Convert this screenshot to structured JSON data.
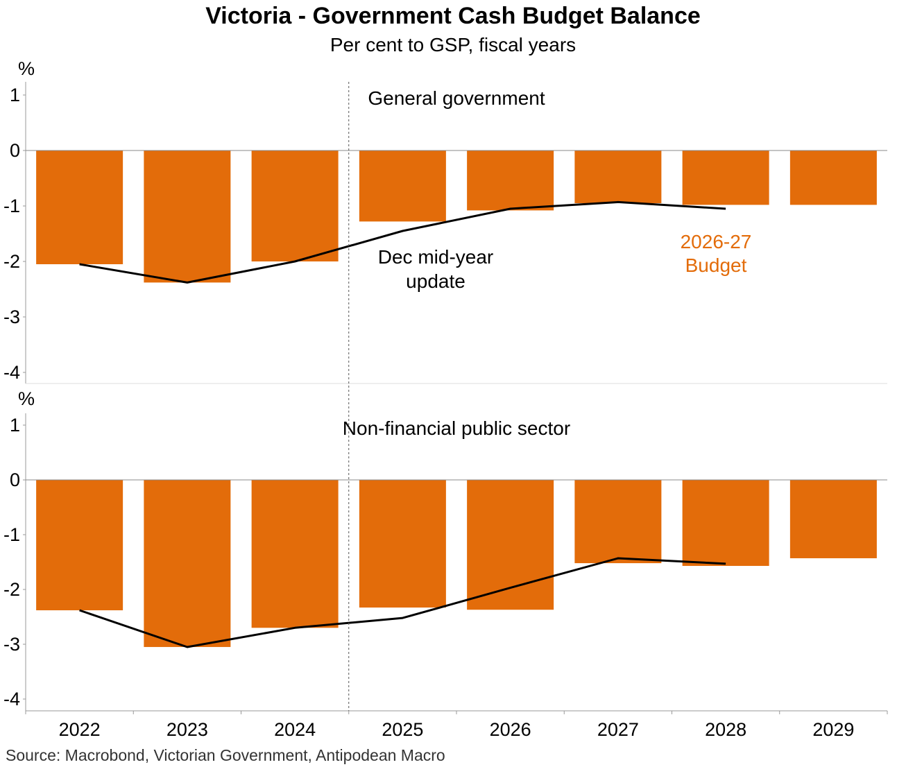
{
  "colors": {
    "bar": "#e36c0a",
    "line": "#000000",
    "annotation_budget": "#e36c0a",
    "axis": "#999999"
  },
  "chart_data": {
    "type": "bar",
    "title": "Victoria - Government Cash Budget Balance",
    "subtitle": "Per cent to GSP, fiscal years",
    "categories": [
      "2022",
      "2023",
      "2024",
      "2025",
      "2026",
      "2027",
      "2028",
      "2029"
    ],
    "ylim": [
      -4.2,
      1.2
    ],
    "yticks": [
      "1",
      "0",
      "-1",
      "-2",
      "-3",
      "-4"
    ],
    "yunit": "%",
    "grid": false,
    "panels": [
      {
        "label": "General government",
        "series": [
          {
            "name": "2026-27 Budget",
            "type": "bar",
            "values": [
              -2.05,
              -2.38,
              -2.0,
              -1.28,
              -1.08,
              -0.95,
              -0.98,
              -0.98
            ]
          },
          {
            "name": "Dec mid-year update",
            "type": "line",
            "values": [
              -2.05,
              -2.38,
              -2.0,
              -1.45,
              -1.05,
              -0.93,
              -1.05,
              null
            ]
          }
        ]
      },
      {
        "label": "Non-financial public sector",
        "series": [
          {
            "name": "2026-27 Budget",
            "type": "bar",
            "values": [
              -2.38,
              -3.05,
              -2.7,
              -2.33,
              -2.37,
              -1.52,
              -1.57,
              -1.43
            ]
          },
          {
            "name": "Dec mid-year update",
            "type": "line",
            "values": [
              -2.38,
              -3.05,
              -2.7,
              -2.52,
              -1.97,
              -1.43,
              -1.53,
              null
            ]
          }
        ]
      }
    ],
    "annotations": {
      "line_label": [
        "Dec mid-year",
        "update"
      ],
      "bar_label": [
        "2026-27",
        "Budget"
      ]
    },
    "divider_after_category": "2024"
  },
  "source": "Source: Macrobond, Victorian Government, Antipodean Macro"
}
